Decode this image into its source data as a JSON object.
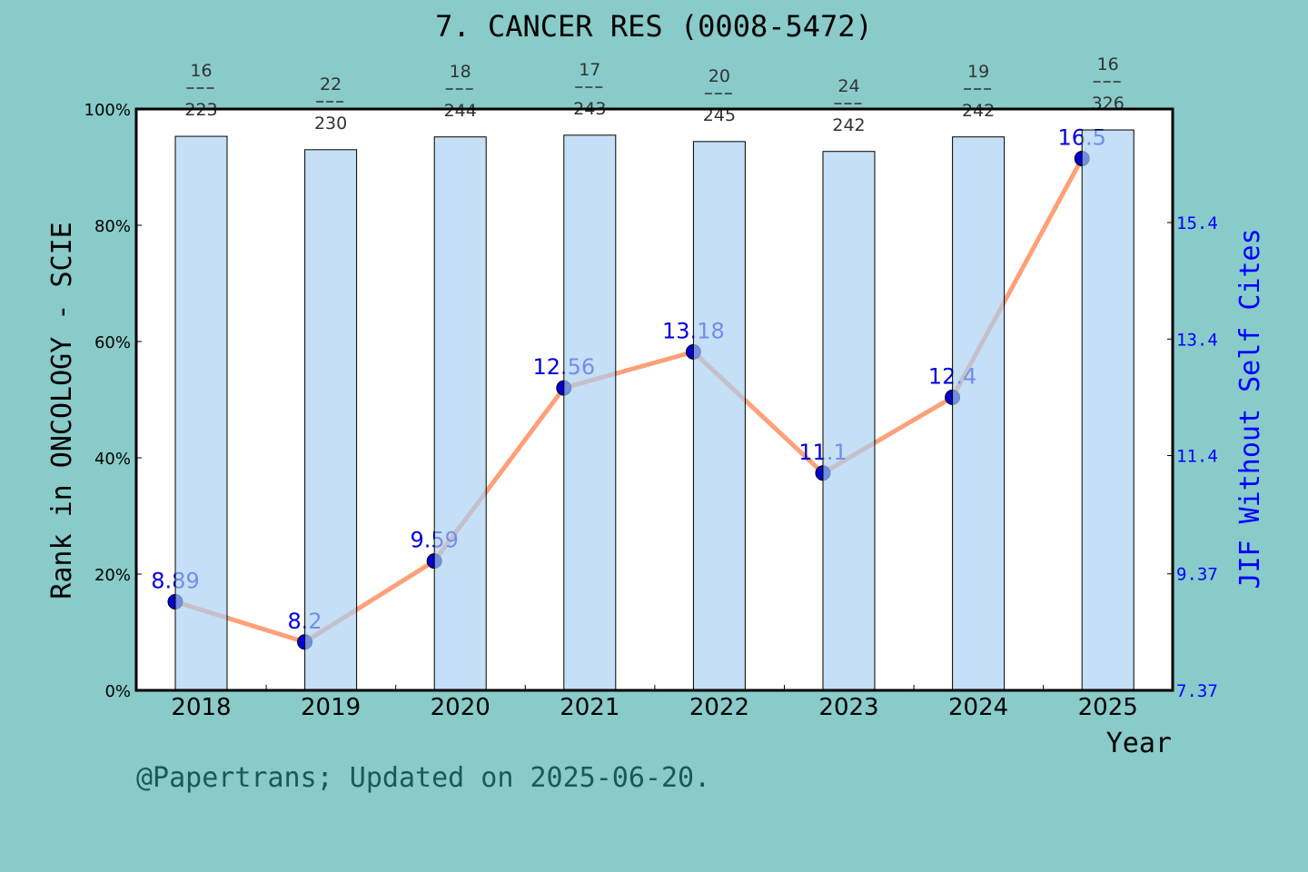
{
  "chart_data": {
    "type": "bar+line",
    "title": "7. CANCER RES (0008-5472)",
    "xlabel": "Year",
    "ylabel_left": "Rank in ONCOLOGY - SCIE",
    "ylabel_right": "JIF Without Self Cites",
    "categories": [
      "2018",
      "2019",
      "2020",
      "2021",
      "2022",
      "2023",
      "2024",
      "2025"
    ],
    "bar_values_percent": [
      95.3,
      93.0,
      95.2,
      95.5,
      94.4,
      92.7,
      95.2,
      96.4
    ],
    "rank_labels": [
      {
        "rank": "16",
        "total": "223"
      },
      {
        "rank": "22",
        "total": "230"
      },
      {
        "rank": "18",
        "total": "244"
      },
      {
        "rank": "17",
        "total": "243"
      },
      {
        "rank": "20",
        "total": "245"
      },
      {
        "rank": "24",
        "total": "242"
      },
      {
        "rank": "19",
        "total": "242"
      },
      {
        "rank": "16",
        "total": "326"
      }
    ],
    "line_values": [
      8.89,
      8.2,
      9.59,
      12.56,
      13.18,
      11.1,
      12.4,
      16.5
    ],
    "line_labels": [
      "8.89",
      "8.2",
      "9.59",
      "12.56",
      "13.18",
      "11.1",
      "12.4",
      "16.5"
    ],
    "left_axis": {
      "ylim": [
        0,
        100
      ],
      "ticks": [
        "0%",
        "20%",
        "40%",
        "60%",
        "80%",
        "100%"
      ]
    },
    "right_axis": {
      "ylim": [
        7.37,
        17.45
      ],
      "ticks": [
        7.37,
        9.37,
        11.4,
        13.4,
        15.4
      ],
      "tick_labels": [
        "7.37",
        "9.37",
        "11.4",
        "13.4",
        "15.4"
      ]
    },
    "colors": {
      "background": "#88cbc9",
      "bar": "#c5e0f7",
      "line": "#ffa07a",
      "marker": "#0000cc",
      "right_axis": "#0000ff"
    },
    "grid": false
  },
  "footer": "@Papertrans; Updated on 2025-06-20."
}
